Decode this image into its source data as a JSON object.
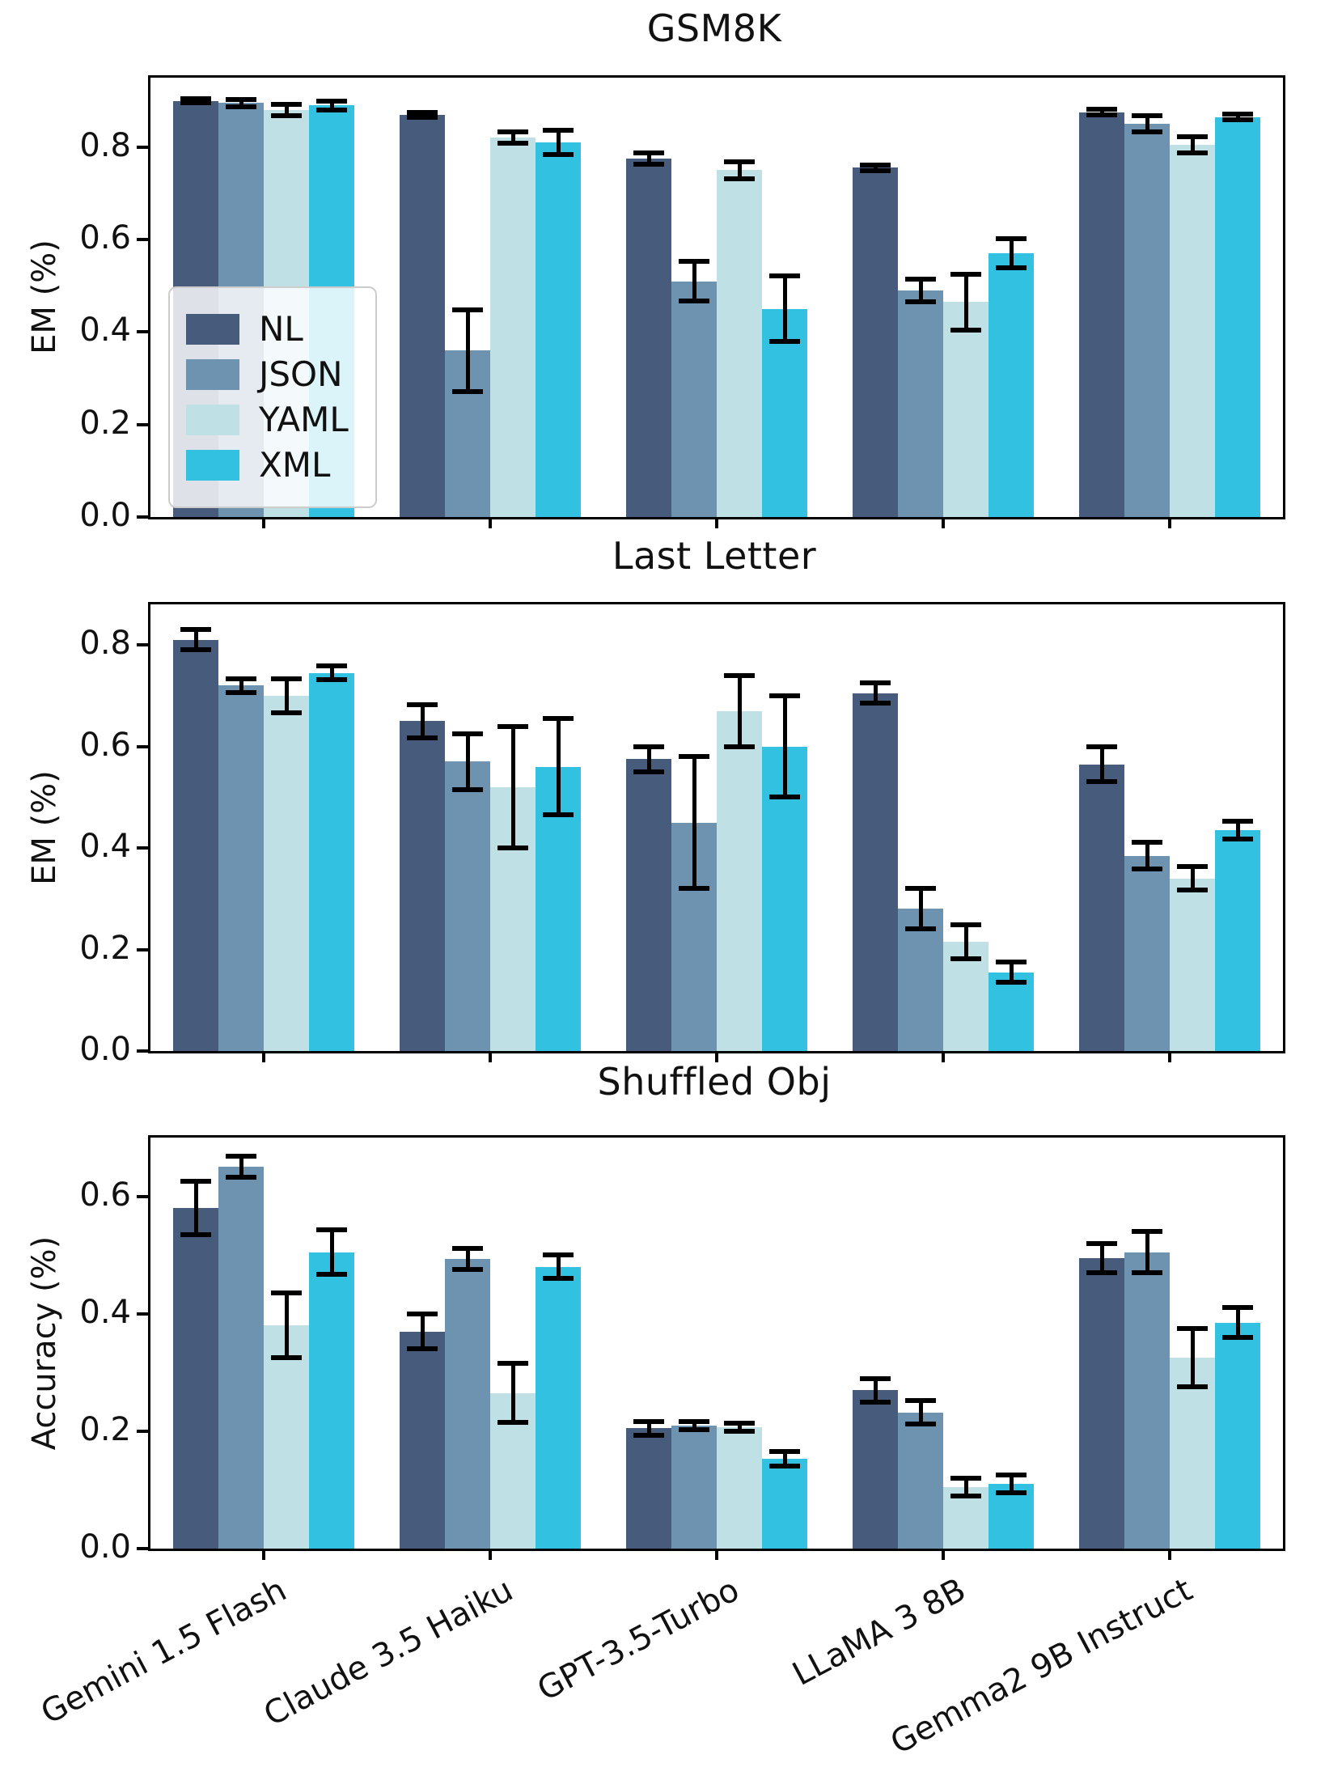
{
  "figure": {
    "titles": [
      "GSM8K",
      "Last Letter",
      "Shuffled Obj"
    ],
    "ylabels": [
      "EM (%)",
      "EM (%)",
      "Accuracy (%)"
    ]
  },
  "palette": {
    "NL": "#475b7c",
    "JSON": "#6d93b1",
    "YAML": "#bfe1e5",
    "XML": "#32c1e0",
    "error_bar": "#000000",
    "axis": "#000000"
  },
  "legend": {
    "entries": [
      "NL",
      "JSON",
      "YAML",
      "XML"
    ],
    "position": "upper-left-inside-first-subplot"
  },
  "models": [
    "Gemini 1.5 Flash",
    "Claude 3.5 Haiku",
    "GPT-3.5-Turbo",
    "LLaMA 3 8B",
    "Gemma2 9B Instruct"
  ],
  "chart_data": [
    {
      "type": "bar",
      "title": "GSM8K",
      "xlabel": "",
      "ylabel": "EM (%)",
      "ylim": [
        0,
        0.95
      ],
      "yticks": [
        0.0,
        0.2,
        0.4,
        0.6,
        0.8
      ],
      "grid": false,
      "legend_position": "center left",
      "categories": [
        "Gemini 1.5 Flash",
        "Claude 3.5 Haiku",
        "GPT-3.5-Turbo",
        "LLaMA 3 8B",
        "Gemma2 9B Instruct"
      ],
      "series": [
        {
          "name": "NL",
          "values": [
            0.9,
            0.87,
            0.775,
            0.755,
            0.875
          ],
          "errors": [
            0.005,
            0.005,
            0.012,
            0.006,
            0.006
          ]
        },
        {
          "name": "JSON",
          "values": [
            0.895,
            0.36,
            0.51,
            0.49,
            0.85
          ],
          "errors": [
            0.008,
            0.088,
            0.043,
            0.025,
            0.017
          ]
        },
        {
          "name": "YAML",
          "values": [
            0.88,
            0.82,
            0.75,
            0.465,
            0.805
          ],
          "errors": [
            0.012,
            0.012,
            0.018,
            0.06,
            0.017
          ]
        },
        {
          "name": "XML",
          "values": [
            0.89,
            0.81,
            0.45,
            0.57,
            0.865
          ],
          "errors": [
            0.01,
            0.027,
            0.071,
            0.032,
            0.006
          ]
        }
      ]
    },
    {
      "type": "bar",
      "title": "Last Letter",
      "xlabel": "",
      "ylabel": "EM (%)",
      "ylim": [
        0,
        0.88
      ],
      "yticks": [
        0.0,
        0.2,
        0.4,
        0.6,
        0.8
      ],
      "grid": false,
      "legend_position": "none",
      "categories": [
        "Gemini 1.5 Flash",
        "Claude 3.5 Haiku",
        "GPT-3.5-Turbo",
        "LLaMA 3 8B",
        "Gemma2 9B Instruct"
      ],
      "series": [
        {
          "name": "NL",
          "values": [
            0.81,
            0.65,
            0.575,
            0.705,
            0.565
          ],
          "errors": [
            0.02,
            0.033,
            0.025,
            0.02,
            0.034
          ]
        },
        {
          "name": "JSON",
          "values": [
            0.72,
            0.57,
            0.45,
            0.28,
            0.385
          ],
          "errors": [
            0.013,
            0.055,
            0.13,
            0.04,
            0.027
          ]
        },
        {
          "name": "YAML",
          "values": [
            0.7,
            0.52,
            0.67,
            0.215,
            0.34
          ],
          "errors": [
            0.033,
            0.12,
            0.07,
            0.034,
            0.023
          ]
        },
        {
          "name": "XML",
          "values": [
            0.745,
            0.56,
            0.6,
            0.155,
            0.435
          ],
          "errors": [
            0.014,
            0.095,
            0.1,
            0.02,
            0.017
          ]
        }
      ]
    },
    {
      "type": "bar",
      "title": "Shuffled Obj",
      "xlabel": "",
      "ylabel": "Accuracy (%)",
      "ylim": [
        0,
        0.7
      ],
      "yticks": [
        0.0,
        0.2,
        0.4,
        0.6
      ],
      "grid": false,
      "legend_position": "none",
      "categories": [
        "Gemini 1.5 Flash",
        "Claude 3.5 Haiku",
        "GPT-3.5-Turbo",
        "LLaMA 3 8B",
        "Gemma2 9B Instruct"
      ],
      "series": [
        {
          "name": "NL",
          "values": [
            0.58,
            0.37,
            0.205,
            0.27,
            0.495
          ],
          "errors": [
            0.046,
            0.03,
            0.012,
            0.02,
            0.025
          ]
        },
        {
          "name": "JSON",
          "values": [
            0.65,
            0.493,
            0.21,
            0.232,
            0.505
          ],
          "errors": [
            0.018,
            0.018,
            0.007,
            0.02,
            0.035
          ]
        },
        {
          "name": "YAML",
          "values": [
            0.38,
            0.265,
            0.207,
            0.105,
            0.325
          ],
          "errors": [
            0.055,
            0.05,
            0.007,
            0.015,
            0.05
          ]
        },
        {
          "name": "XML",
          "values": [
            0.505,
            0.48,
            0.153,
            0.11,
            0.385
          ],
          "errors": [
            0.038,
            0.02,
            0.012,
            0.015,
            0.025
          ]
        }
      ]
    }
  ]
}
